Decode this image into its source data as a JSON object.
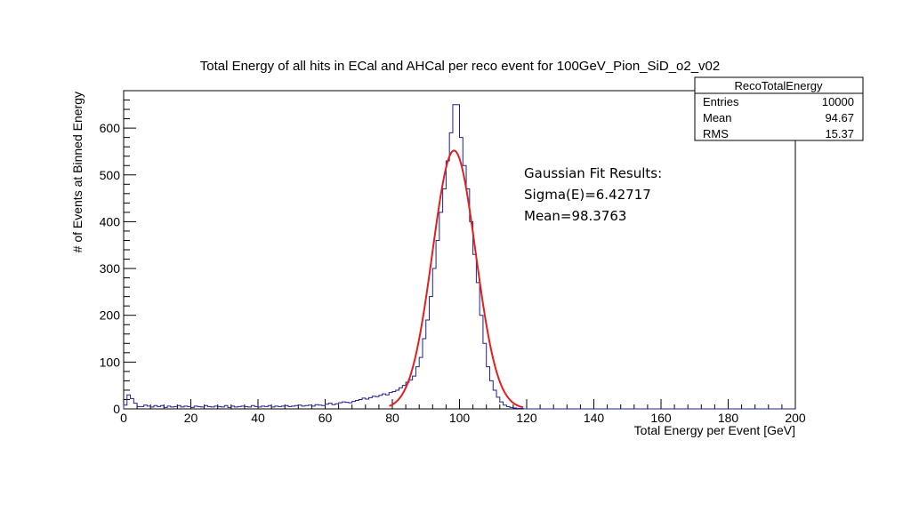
{
  "chart_data": {
    "type": "histogram",
    "title": "Total Energy of all hits in ECal and AHCal per reco event for 100GeV_Pion_SiD_o2_v02",
    "xlabel": "Total Energy per Event [GeV]",
    "ylabel": "# of Events at Binned Energy",
    "xlim": [
      0,
      200
    ],
    "ylim": [
      0,
      680
    ],
    "x_ticks": [
      "0",
      "20",
      "40",
      "60",
      "80",
      "100",
      "120",
      "140",
      "160",
      "180",
      "200"
    ],
    "y_ticks": [
      "0",
      "100",
      "200",
      "300",
      "400",
      "500",
      "600"
    ],
    "x_tick_values": [
      0,
      20,
      40,
      60,
      80,
      100,
      120,
      140,
      160,
      180,
      200
    ],
    "y_tick_values": [
      0,
      100,
      200,
      300,
      400,
      500,
      600
    ],
    "bin_width": 1,
    "histogram_color": "#1f1f8f",
    "fit_color": "#e02020",
    "histogram": {
      "bin_edges_start": 0,
      "counts": [
        8,
        30,
        22,
        12,
        5,
        5,
        8,
        6,
        4,
        7,
        5,
        7,
        3,
        6,
        4,
        5,
        7,
        4,
        6,
        5,
        3,
        6,
        5,
        4,
        7,
        5,
        4,
        6,
        5,
        4,
        7,
        3,
        6,
        4,
        5,
        6,
        5,
        4,
        7,
        5,
        4,
        6,
        5,
        7,
        4,
        6,
        5,
        6,
        7,
        5,
        6,
        7,
        8,
        6,
        7,
        8,
        6,
        9,
        8,
        7,
        10,
        12,
        9,
        11,
        13,
        15,
        14,
        13,
        16,
        18,
        20,
        23,
        21,
        24,
        27,
        26,
        29,
        32,
        30,
        35,
        37,
        40,
        45,
        50,
        57,
        62,
        70,
        90,
        110,
        150,
        190,
        240,
        300,
        360,
        420,
        470,
        530,
        590,
        650,
        650,
        580,
        520,
        470,
        400,
        330,
        270,
        200,
        140,
        90,
        60,
        40,
        25,
        15,
        8,
        5,
        3,
        2,
        1,
        1,
        0
      ],
      "note_counts_start_at": "0"
    },
    "gaussian_fit": {
      "amplitude": 552,
      "mean": 98.3763,
      "sigma": 6.42717
    },
    "stats_box": {
      "title": "RecoTotalEnergy",
      "rows": [
        {
          "label": "Entries",
          "value": "10000"
        },
        {
          "label": "Mean",
          "value": "94.67"
        },
        {
          "label": "RMS",
          "value": "15.37"
        }
      ]
    },
    "fit_results": {
      "line1": "Gaussian Fit Results:",
      "line2": "Sigma(E)=6.42717",
      "line3": "Mean=98.3763"
    }
  }
}
